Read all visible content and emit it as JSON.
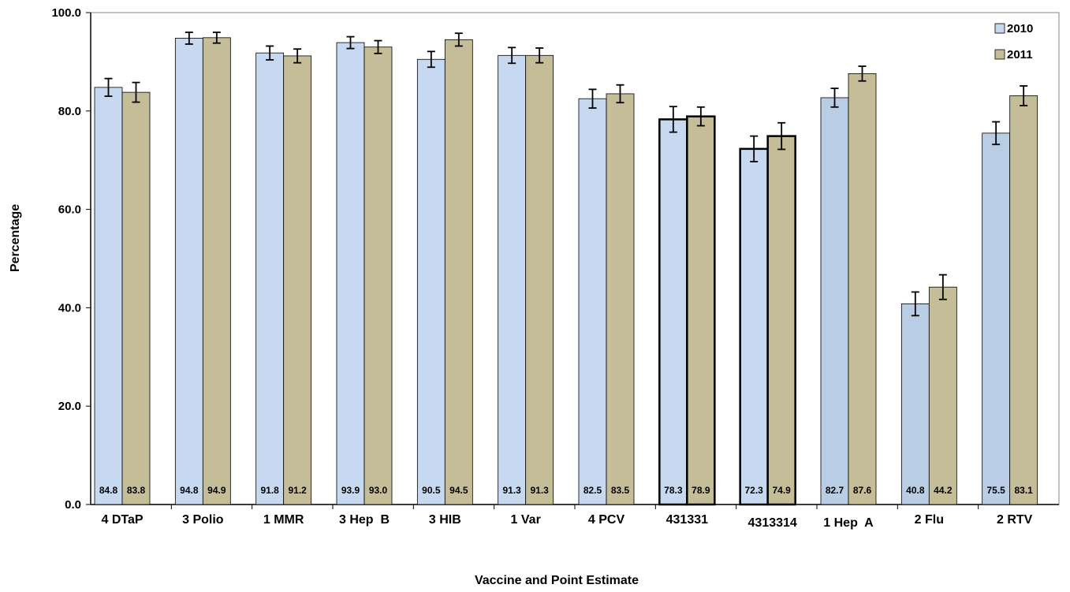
{
  "chart_data": {
    "type": "bar",
    "title": "",
    "xlabel": "Vaccine and Point Estimate",
    "ylabel": "Percentage",
    "ylim": [
      0,
      100
    ],
    "yticks": [
      "0.0",
      "20.0",
      "40.0",
      "60.0",
      "80.0",
      "100.0"
    ],
    "grid": false,
    "legend_position": "top-right",
    "categories": [
      "4 DTaP",
      "3 Polio",
      "1 MMR",
      "3 Hep  B",
      "3 HIB",
      "1 Var",
      "4 PCV",
      "431331",
      "4313314",
      "1 Hep  A",
      "2 Flu",
      "2 RTV"
    ],
    "series": [
      {
        "name": "2010",
        "color": "#c6d9f1",
        "values": [
          84.8,
          94.8,
          91.8,
          93.9,
          90.5,
          91.3,
          82.5,
          78.3,
          72.3,
          82.7,
          40.8,
          75.5
        ],
        "labels": [
          "84.8",
          "94.8",
          "91.8",
          "93.9",
          "90.5",
          "91.3",
          "82.5",
          "78.3",
          "72.3",
          "82.7",
          "40.8",
          "75.5"
        ],
        "error": [
          1.8,
          1.2,
          1.4,
          1.2,
          1.6,
          1.6,
          1.9,
          2.6,
          2.6,
          1.9,
          2.4,
          2.3
        ]
      },
      {
        "name": "2011",
        "color": "#c4bd97",
        "values": [
          83.8,
          94.9,
          91.2,
          93.0,
          94.5,
          91.3,
          83.5,
          78.9,
          74.9,
          87.6,
          44.2,
          83.1
        ],
        "labels": [
          "83.8",
          "94.9",
          "91.2",
          "93.0",
          "94.5",
          "91.3",
          "83.5",
          "78.9",
          "74.9",
          "87.6",
          "44.2",
          "83.1"
        ],
        "error": [
          2.0,
          1.1,
          1.4,
          1.3,
          1.3,
          1.5,
          1.8,
          1.9,
          2.7,
          1.5,
          2.5,
          2.0
        ]
      }
    ],
    "emphasized_categories": [
      "431331",
      "4313314"
    ],
    "darker_2010_categories": [
      "1 Hep  A",
      "2 Flu",
      "2 RTV"
    ],
    "darker_2010_color": "#b9cde5"
  }
}
